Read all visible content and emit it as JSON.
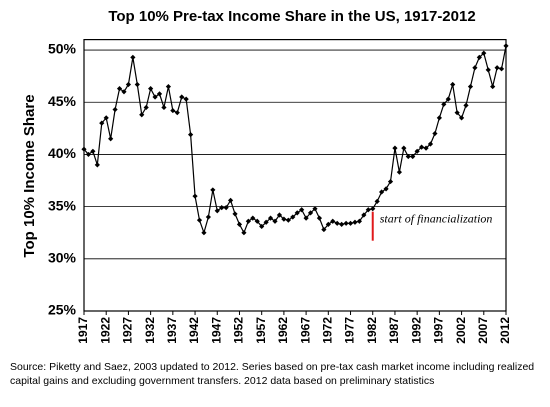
{
  "chart_data": {
    "type": "line",
    "title": "Top 10% Pre-tax Income Share in the US, 1917-2012",
    "y_label": "Top 10% Income Share",
    "x": [
      1917,
      1918,
      1919,
      1920,
      1921,
      1922,
      1923,
      1924,
      1925,
      1926,
      1927,
      1928,
      1929,
      1930,
      1931,
      1932,
      1933,
      1934,
      1935,
      1936,
      1937,
      1938,
      1939,
      1940,
      1941,
      1942,
      1943,
      1944,
      1945,
      1946,
      1947,
      1948,
      1949,
      1950,
      1951,
      1952,
      1953,
      1954,
      1955,
      1956,
      1957,
      1958,
      1959,
      1960,
      1961,
      1962,
      1963,
      1964,
      1965,
      1966,
      1967,
      1968,
      1969,
      1970,
      1971,
      1972,
      1973,
      1974,
      1975,
      1976,
      1977,
      1978,
      1979,
      1980,
      1981,
      1982,
      1983,
      1984,
      1985,
      1986,
      1987,
      1988,
      1989,
      1990,
      1991,
      1992,
      1993,
      1994,
      1995,
      1996,
      1997,
      1998,
      1999,
      2000,
      2001,
      2002,
      2003,
      2004,
      2005,
      2006,
      2007,
      2008,
      2009,
      2010,
      2011,
      2012
    ],
    "values": [
      40.5,
      40.0,
      40.3,
      39.0,
      43.0,
      43.5,
      41.5,
      44.3,
      46.3,
      46.0,
      46.7,
      49.3,
      46.7,
      43.8,
      44.5,
      46.3,
      45.5,
      45.8,
      44.5,
      46.5,
      44.2,
      44.0,
      45.5,
      45.3,
      41.9,
      36.0,
      33.7,
      32.5,
      34.0,
      36.6,
      34.6,
      34.9,
      34.9,
      35.6,
      34.3,
      33.3,
      32.5,
      33.6,
      33.9,
      33.6,
      33.1,
      33.5,
      33.9,
      33.6,
      34.2,
      33.8,
      33.7,
      34.0,
      34.4,
      34.7,
      33.9,
      34.4,
      34.8,
      33.9,
      32.8,
      33.3,
      33.6,
      33.4,
      33.3,
      33.4,
      33.4,
      33.5,
      33.6,
      34.2,
      34.7,
      34.8,
      35.5,
      36.4,
      36.7,
      37.4,
      40.6,
      38.3,
      40.6,
      39.8,
      39.8,
      40.3,
      40.7,
      40.6,
      41.0,
      42.0,
      43.5,
      44.8,
      45.3,
      46.7,
      44.0,
      43.5,
      44.7,
      46.5,
      48.3,
      49.3,
      49.7,
      48.1,
      46.5,
      48.3,
      48.2,
      50.4
    ],
    "color": "#000000",
    "xlim": [
      1917,
      2012
    ],
    "xticks": [
      1917,
      1922,
      1927,
      1932,
      1937,
      1942,
      1947,
      1952,
      1957,
      1962,
      1967,
      1972,
      1977,
      1982,
      1987,
      1992,
      1997,
      2002,
      2007,
      2012
    ],
    "ylim": [
      25,
      51
    ],
    "yticks": [
      {
        "value": 25,
        "label": "25%"
      },
      {
        "value": 30,
        "label": "30%"
      },
      {
        "value": 35,
        "label": "35%"
      },
      {
        "value": 40,
        "label": "40%"
      },
      {
        "value": 45,
        "label": "45%"
      },
      {
        "value": 50,
        "label": "50%"
      }
    ],
    "grid": true,
    "annotation": {
      "text": "start of financialization",
      "x": 1982,
      "color": "#e0191b"
    },
    "source": [
      "Source: Piketty and Saez, 2003 updated to 2012. Series based on pre-tax cash market income including realized",
      "capital gains and excluding government transfers. 2012 data based on preliminary statistics"
    ]
  }
}
